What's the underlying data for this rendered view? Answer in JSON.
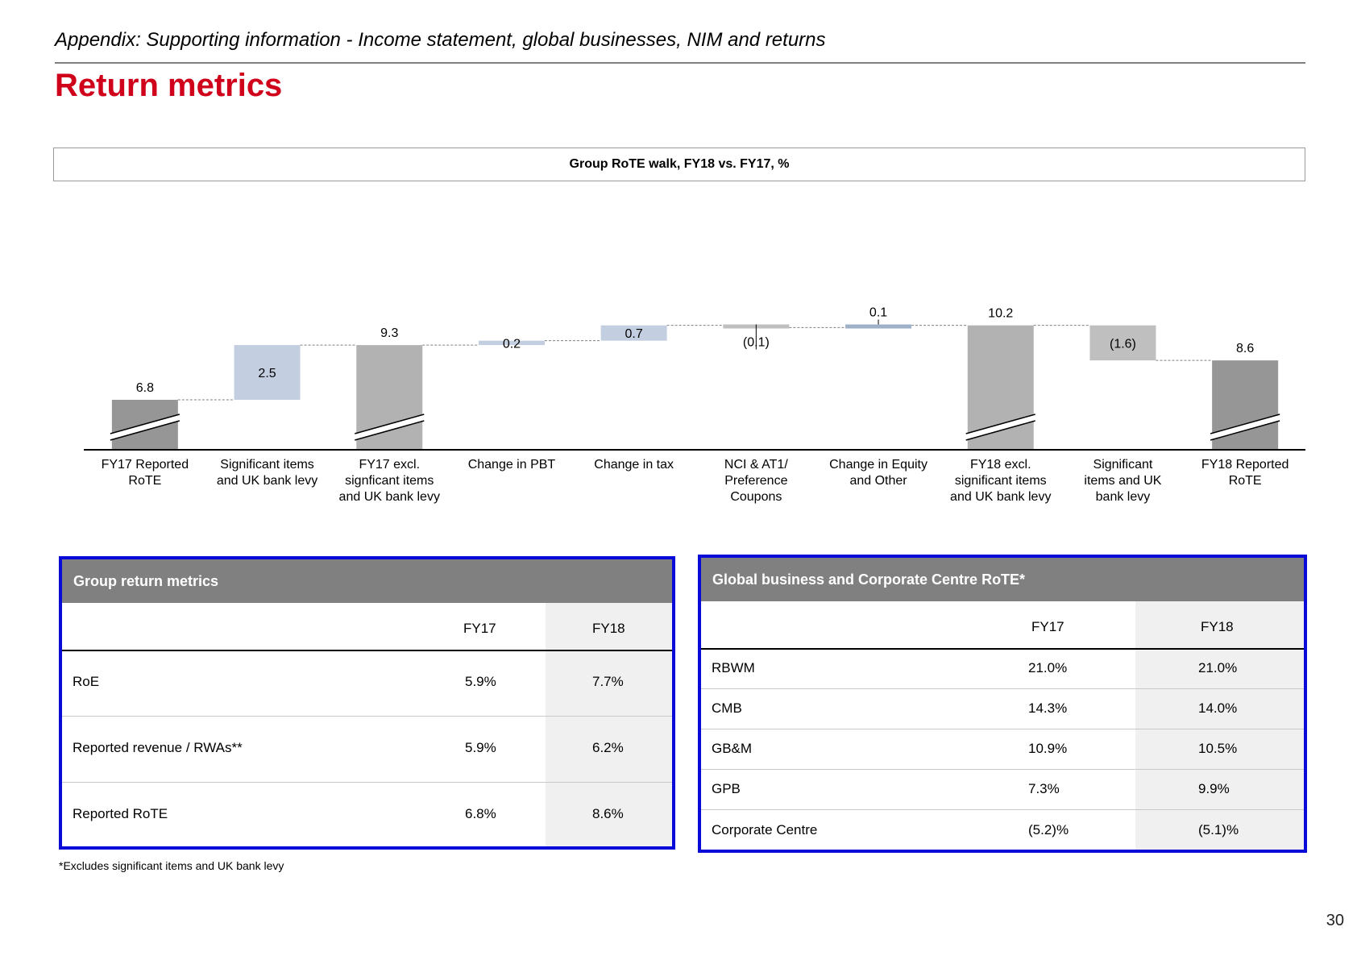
{
  "header": {
    "section": "Appendix: Supporting information - Income statement, global businesses, NIM and returns",
    "title": "Return metrics"
  },
  "chart_data": {
    "type": "bar",
    "subtype": "waterfall",
    "title": "Group RoTE walk, FY18 vs. FY17, %",
    "categories": [
      "FY17 Reported RoTE",
      "Significant items and UK bank levy",
      "FY17 excl. signficant items and UK bank levy",
      "Change in PBT",
      "Change in tax",
      "NCI & AT1/ Preference Coupons",
      "Change in Equity and Other",
      "FY18 excl. significant items and UK bank levy",
      "Significant items and UK bank levy",
      "FY18 Reported RoTE"
    ],
    "category_lines": [
      [
        "FY17 Reported",
        "RoTE"
      ],
      [
        "Significant items",
        "and UK bank levy"
      ],
      [
        "FY17 excl.",
        "signficant items",
        "and UK bank levy"
      ],
      [
        "Change in PBT"
      ],
      [
        "Change in tax"
      ],
      [
        "NCI & AT1/",
        "Preference",
        "Coupons"
      ],
      [
        "Change in Equity",
        "and Other"
      ],
      [
        "FY18 excl.",
        "significant items",
        "and UK bank levy"
      ],
      [
        "Significant",
        "items and UK",
        "bank levy"
      ],
      [
        "FY18 Reported",
        "RoTE"
      ]
    ],
    "values": [
      6.8,
      2.5,
      9.3,
      0.2,
      0.7,
      -0.1,
      0.1,
      10.2,
      -1.6,
      8.6
    ],
    "labels": [
      "6.8",
      "2.5",
      "9.3",
      "0.2",
      "0.7",
      "(0.1)",
      "0.1",
      "10.2",
      "(1.6)",
      "8.6"
    ],
    "kinds": [
      "total",
      "delta",
      "total",
      "delta",
      "delta",
      "delta",
      "delta",
      "total",
      "delta",
      "total"
    ],
    "axis_break": [
      true,
      false,
      true,
      false,
      false,
      false,
      false,
      true,
      false,
      true
    ],
    "colors": {
      "total_dark": "#969696",
      "total": "#b2b2b2",
      "delta_pos": "#c3cfe0",
      "delta_neg": "#bfbfbf",
      "delta_small": "#9fb1c9",
      "connector": "#808080"
    }
  },
  "group_metrics": {
    "title": "Group return metrics",
    "col_fy17": "FY17",
    "col_fy18": "FY18",
    "rows": [
      {
        "label": "RoE",
        "fy17": "5.9%",
        "fy18": "7.7%"
      },
      {
        "label": "Reported revenue / RWAs**",
        "fy17": "5.9%",
        "fy18": "6.2%"
      },
      {
        "label": "Reported RoTE",
        "fy17": "6.8%",
        "fy18": "8.6%"
      }
    ]
  },
  "business_rote": {
    "title": "Global business and Corporate Centre RoTE*",
    "col_fy17": "FY17",
    "col_fy18": "FY18",
    "rows": [
      {
        "label": "RBWM",
        "fy17": "21.0%",
        "fy18": "21.0%"
      },
      {
        "label": "CMB",
        "fy17": "14.3%",
        "fy18": "14.0%"
      },
      {
        "label": "GB&M",
        "fy17": "10.9%",
        "fy18": "10.5%"
      },
      {
        "label": "GPB",
        "fy17": "7.3%",
        "fy18": "9.9%"
      },
      {
        "label": "Corporate Centre",
        "fy17": "(5.2)%",
        "fy18": "(5.1)%"
      }
    ]
  },
  "footnote": "*Excludes significant items and UK bank levy",
  "page_number": "30",
  "accent_color": "#d0021b",
  "panel_border_color": "#0a0ad8"
}
